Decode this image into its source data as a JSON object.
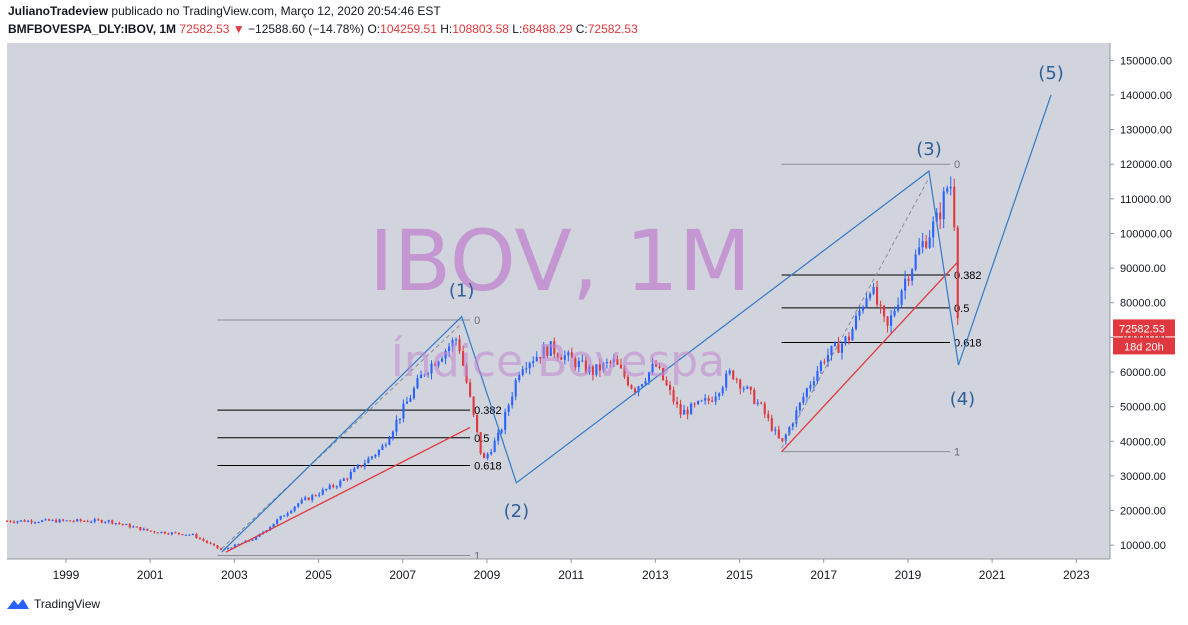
{
  "header": {
    "author": "JulianoTradeview",
    "published": "publicado no TradingView.com, Março 12, 2020 20:54:46 EST",
    "symbol": "BMFBOVESPA_DLY:IBOV, 1M",
    "last": "72582.53",
    "change": "−12588.60 (−14.78%)",
    "o_label": "O:",
    "o": "104259.51",
    "h_label": "H:",
    "h": "108803.58",
    "l_label": "L:",
    "l": "68488.29",
    "c_label": "C:",
    "c": "72582.53"
  },
  "footer": {
    "brand": "TradingView"
  },
  "colors": {
    "bg": "#d1d4dc",
    "up": "#2962ff",
    "down": "#e0383e",
    "wave": "#3179c9",
    "trend": "#e0383e",
    "watermark": "#c28bd0"
  },
  "chart_data": {
    "type": "candlestick",
    "watermark_title": "IBOV, 1M",
    "watermark_subtitle": "Índice Bovespa",
    "x_ticks": [
      "1999",
      "2001",
      "2003",
      "2005",
      "2007",
      "2009",
      "2011",
      "2013",
      "2015",
      "2017",
      "2019",
      "2021",
      "2023"
    ],
    "y_ticks": [
      "150000.00",
      "140000.00",
      "130000.00",
      "120000.00",
      "110000.00",
      "100000.00",
      "90000.00",
      "80000.00",
      "70000.00",
      "60000.00",
      "50000.00",
      "40000.00",
      "30000.00",
      "20000.00",
      "10000.00"
    ],
    "ylim": [
      6000,
      155000
    ],
    "xlim": [
      1997.6,
      2023.8
    ],
    "price_label": "72582.53",
    "countdown_label": "18d 20h",
    "waves": [
      {
        "label": "(1)",
        "x": 2008.4,
        "y": 76000
      },
      {
        "label": "(2)",
        "x": 2009.7,
        "y": 28000
      },
      {
        "label": "(3)",
        "x": 2019.5,
        "y": 118000
      },
      {
        "label": "(4)",
        "x": 2020.2,
        "y": 62000
      },
      {
        "label": "(5)",
        "x": 2022.4,
        "y": 140000
      }
    ],
    "wave_line": [
      [
        2002.7,
        8000
      ],
      [
        2008.4,
        76000
      ],
      [
        2009.7,
        28000
      ],
      [
        2019.5,
        118000
      ],
      [
        2020.2,
        62000
      ],
      [
        2022.4,
        140000
      ]
    ],
    "fib_sets": [
      {
        "x1": 2002.6,
        "x2": 2008.6,
        "levels": [
          {
            "label": "0",
            "y": 75000
          },
          {
            "label": "0.382",
            "y": 49000
          },
          {
            "label": "0.5",
            "y": 41000
          },
          {
            "label": "0.618",
            "y": 33000
          },
          {
            "label": "1",
            "y": 7000
          }
        ]
      },
      {
        "x1": 2016.0,
        "x2": 2020.0,
        "levels": [
          {
            "label": "0",
            "y": 120000
          },
          {
            "label": "0.382",
            "y": 88000
          },
          {
            "label": "0.5",
            "y": 78500
          },
          {
            "label": "0.618",
            "y": 68500
          },
          {
            "label": "1",
            "y": 37000
          }
        ]
      }
    ],
    "trendlines": [
      [
        [
          2002.8,
          8000
        ],
        [
          2008.6,
          44000
        ]
      ],
      [
        [
          2016.0,
          37000
        ],
        [
          2020.2,
          92000
        ]
      ]
    ],
    "anchors": [
      [
        2000.0,
        17000
      ],
      [
        2001.0,
        14000
      ],
      [
        2002.0,
        13000
      ],
      [
        2002.7,
        8500
      ],
      [
        2003.5,
        12000
      ],
      [
        2004.5,
        22000
      ],
      [
        2005.5,
        28000
      ],
      [
        2006.5,
        38000
      ],
      [
        2007.5,
        60000
      ],
      [
        2008.3,
        70000
      ],
      [
        2008.9,
        34000
      ],
      [
        2009.3,
        42000
      ],
      [
        2009.8,
        62000
      ],
      [
        2010.5,
        67000
      ],
      [
        2011.5,
        60000
      ],
      [
        2012.0,
        63000
      ],
      [
        2012.5,
        55000
      ],
      [
        2013.0,
        62000
      ],
      [
        2013.6,
        48000
      ],
      [
        2014.3,
        52000
      ],
      [
        2014.8,
        60000
      ],
      [
        2015.5,
        50000
      ],
      [
        2016.0,
        39000
      ],
      [
        2016.6,
        55000
      ],
      [
        2017.0,
        64000
      ],
      [
        2017.6,
        70000
      ],
      [
        2018.1,
        85000
      ],
      [
        2018.5,
        72000
      ],
      [
        2018.9,
        86000
      ],
      [
        2019.3,
        96000
      ],
      [
        2019.7,
        104000
      ],
      [
        2020.0,
        116000
      ],
      [
        2020.1,
        104000
      ],
      [
        2020.2,
        72582
      ]
    ]
  }
}
